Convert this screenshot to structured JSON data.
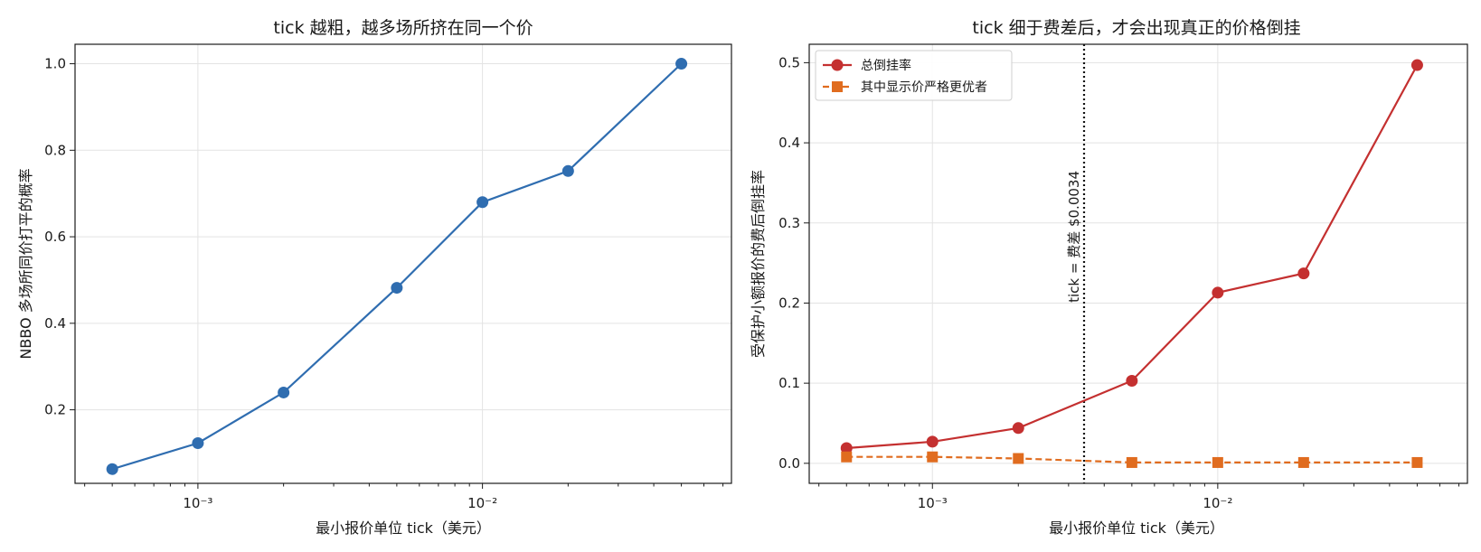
{
  "chart_data": [
    {
      "type": "line",
      "title": "tick 越粗，越多场所挤在同一个价",
      "xlabel": "最小报价单位 tick（美元）",
      "ylabel": "NBBO 多场所同价打平的概率",
      "xscale": "log",
      "xlim": [
        0.00037,
        0.075
      ],
      "ylim": [
        0.03,
        1.045
      ],
      "x_ticks": [
        0.001,
        0.01
      ],
      "x_tick_labels": [
        "10⁻³",
        "10⁻²"
      ],
      "y_ticks": [
        0.2,
        0.4,
        0.6,
        0.8,
        1.0
      ],
      "y_tick_labels": [
        "0.2",
        "0.4",
        "0.6",
        "0.8",
        "1.0"
      ],
      "grid": true,
      "series": [
        {
          "color": "#2f6db0",
          "marker": "circle",
          "linestyle": "solid",
          "x": [
            0.0005,
            0.001,
            0.002,
            0.005,
            0.01,
            0.02,
            0.05
          ],
          "y": [
            0.063,
            0.123,
            0.24,
            0.482,
            0.68,
            0.752,
            1.0
          ]
        }
      ]
    },
    {
      "type": "line",
      "title": "tick 细于费差后，才会出现真正的价格倒挂",
      "xlabel": "最小报价单位 tick（美元）",
      "ylabel": "受保护小额报价的费后倒挂率",
      "xscale": "log",
      "xlim": [
        0.00037,
        0.075
      ],
      "ylim": [
        -0.025,
        0.523
      ],
      "x_ticks": [
        0.001,
        0.01
      ],
      "x_tick_labels": [
        "10⁻³",
        "10⁻²"
      ],
      "y_ticks": [
        0.0,
        0.1,
        0.2,
        0.3,
        0.4,
        0.5
      ],
      "y_tick_labels": [
        "0.0",
        "0.1",
        "0.2",
        "0.3",
        "0.4",
        "0.5"
      ],
      "grid": true,
      "legend_position": "top-left",
      "series": [
        {
          "name": "总倒挂率",
          "color": "#c43030",
          "marker": "circle",
          "linestyle": "solid",
          "x": [
            0.0005,
            0.001,
            0.002,
            0.005,
            0.01,
            0.02,
            0.05
          ],
          "y": [
            0.019,
            0.027,
            0.044,
            0.103,
            0.213,
            0.237,
            0.497
          ]
        },
        {
          "name": "其中显示价严格更优者",
          "color": "#e06c1f",
          "marker": "square",
          "linestyle": "dashed",
          "x": [
            0.0005,
            0.001,
            0.002,
            0.005,
            0.01,
            0.02,
            0.05
          ],
          "y": [
            0.008,
            0.008,
            0.006,
            0.001,
            0.001,
            0.001,
            0.001
          ]
        }
      ],
      "annotations": [
        {
          "type": "vline",
          "x": 0.0034,
          "linestyle": "dotted",
          "color": "#111111",
          "label": "tick = 费差 $0.0034"
        }
      ]
    }
  ]
}
